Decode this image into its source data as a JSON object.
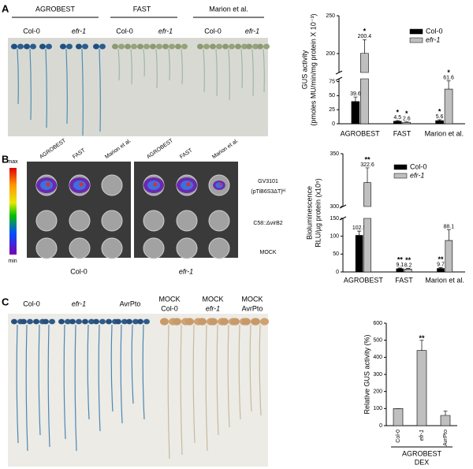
{
  "panels": [
    "A",
    "B",
    "C"
  ],
  "photo_a": {
    "groups": [
      "AGROBEST",
      "FAST",
      "Marion et al."
    ],
    "lanes": [
      "Col-0",
      "efr-1"
    ]
  },
  "photo_b": {
    "columns": [
      "AGROBEST",
      "FAST",
      "Marion et al."
    ],
    "rows": [
      [
        "GV3101",
        "(pTiB6S3ΔT)ᴴ"
      ],
      [
        "C58::ΔvirB2"
      ],
      [
        "MOCK"
      ]
    ],
    "plates": [
      "Col-0",
      "efr-1"
    ],
    "scale": [
      "max",
      "min"
    ]
  },
  "photo_c": {
    "labels": [
      [
        "Col-0"
      ],
      [
        "efr-1"
      ],
      [
        "AvrPto"
      ],
      [
        "MOCK",
        "Col-0"
      ],
      [
        "MOCK",
        "efr-1"
      ],
      [
        "MOCK",
        "AvrPto"
      ]
    ]
  },
  "chart_data": [
    {
      "type": "bar",
      "categories": [
        "AGROBEST",
        "FAST",
        "Marion et al."
      ],
      "series": [
        {
          "name": "Col-0",
          "color": "#000000",
          "values": [
            39.6,
            4.5,
            5.6
          ],
          "errors": [
            8,
            1.2,
            1.5
          ],
          "stars": [
            null,
            "*",
            "*"
          ]
        },
        {
          "name": "efr-1",
          "color": "#bfbfbf",
          "values": [
            200.4,
            2.6,
            61.6
          ],
          "errors": [
            18,
            0.8,
            15
          ],
          "stars": [
            "*",
            "*",
            "*"
          ]
        }
      ],
      "segments": [
        {
          "ylim": [
            0,
            80
          ],
          "yticks": [
            0,
            25,
            50,
            75
          ]
        },
        {
          "ylim": [
            175,
            250
          ],
          "yticks": [
            200,
            250
          ]
        }
      ],
      "ylabel": [
        "GUS activity",
        "(pmoles MU/min/mg protein X 10⁻³)"
      ],
      "show_values": true,
      "legend": "upper right"
    },
    {
      "type": "bar",
      "categories": [
        "AGROBEST",
        "FAST",
        "Marion et al."
      ],
      "series": [
        {
          "name": "Col-0",
          "color": "#000000",
          "values": [
            102.5,
            9.1,
            9.7
          ],
          "errors": [
            12,
            2,
            2.5
          ],
          "stars": [
            null,
            "**",
            "**"
          ]
        },
        {
          "name": "efr-1",
          "color": "#bfbfbf",
          "values": [
            322.6,
            8.2,
            88.1
          ],
          "errors": [
            14,
            1.5,
            30
          ],
          "stars": [
            "**",
            "**",
            null
          ]
        }
      ],
      "segments": [
        {
          "ylim": [
            0,
            150
          ],
          "yticks": [
            0,
            50,
            100,
            150
          ]
        },
        {
          "ylim": [
            300,
            350
          ],
          "yticks": [
            300,
            350
          ]
        }
      ],
      "ylabel": [
        "Bioluminescence",
        "RLU/µg protein (x10⁵)"
      ],
      "show_values": true,
      "legend": "upper right"
    },
    {
      "type": "bar",
      "categories": [
        "Col-0",
        "efr-1",
        "AvrPto"
      ],
      "series": [
        {
          "color": "#bfbfbf",
          "values": [
            100,
            440,
            60
          ],
          "errors": [
            0,
            60,
            25
          ],
          "stars": [
            null,
            "**",
            null
          ]
        }
      ],
      "segments": [
        {
          "ylim": [
            0,
            600
          ],
          "yticks": [
            0,
            100,
            200,
            300,
            400,
            500,
            600
          ]
        }
      ],
      "ylabel": [
        "Relative GUS activity (%)"
      ],
      "xlabel": [
        "AGROBEST",
        "DEX"
      ],
      "show_values": false
    }
  ]
}
